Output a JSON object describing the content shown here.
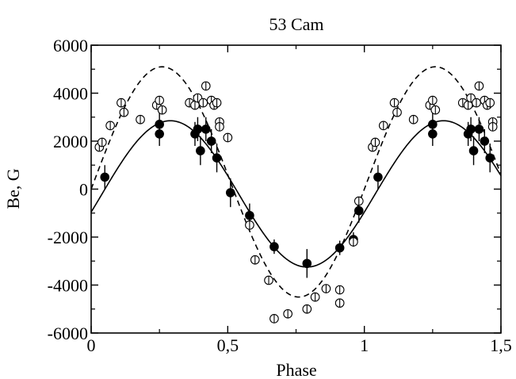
{
  "chart_data": {
    "type": "scatter",
    "title": "53 Cam",
    "xlabel": "Phase",
    "ylabel": "Be, G",
    "xlim": [
      0,
      1.5
    ],
    "ylim": [
      -6000,
      6000
    ],
    "x_ticks": [
      {
        "value": 0,
        "label": "0"
      },
      {
        "value": 0.5,
        "label": "0,5"
      },
      {
        "value": 1,
        "label": "1"
      },
      {
        "value": 1.5,
        "label": "1,5"
      }
    ],
    "y_ticks": [
      {
        "value": -6000,
        "label": "-6000"
      },
      {
        "value": -4000,
        "label": "-4000"
      },
      {
        "value": -2000,
        "label": "-2000"
      },
      {
        "value": 0,
        "label": "0"
      },
      {
        "value": 2000,
        "label": "2000"
      },
      {
        "value": 4000,
        "label": "4000"
      },
      {
        "value": 6000,
        "label": "6000"
      }
    ],
    "grid": false,
    "legend": "none",
    "series": [
      {
        "marker": "filled-circle",
        "color": "#000000",
        "points": [
          {
            "x": 0.05,
            "y": 500,
            "err": 500
          },
          {
            "x": 0.25,
            "y": 2300,
            "err": 500
          },
          {
            "x": 0.25,
            "y": 2700,
            "err": 500
          },
          {
            "x": 0.38,
            "y": 2300,
            "err": 500
          },
          {
            "x": 0.39,
            "y": 2500,
            "err": 500
          },
          {
            "x": 0.4,
            "y": 1600,
            "err": 600
          },
          {
            "x": 0.42,
            "y": 2500,
            "err": 500
          },
          {
            "x": 0.44,
            "y": 2000,
            "err": 500
          },
          {
            "x": 0.46,
            "y": 1300,
            "err": 600
          },
          {
            "x": 0.51,
            "y": -150,
            "err": 600
          },
          {
            "x": 0.58,
            "y": -1100,
            "err": 500
          },
          {
            "x": 0.67,
            "y": -2400,
            "err": 300
          },
          {
            "x": 0.79,
            "y": -3100,
            "err": 600
          },
          {
            "x": 0.91,
            "y": -2450,
            "err": 300
          },
          {
            "x": 0.96,
            "y": -2100,
            "err": 300
          },
          {
            "x": 0.98,
            "y": -900,
            "err": 500
          },
          {
            "x": 1.05,
            "y": 500,
            "err": 500
          },
          {
            "x": 1.25,
            "y": 2300,
            "err": 500
          },
          {
            "x": 1.25,
            "y": 2700,
            "err": 500
          },
          {
            "x": 1.38,
            "y": 2300,
            "err": 500
          },
          {
            "x": 1.39,
            "y": 2500,
            "err": 500
          },
          {
            "x": 1.4,
            "y": 1600,
            "err": 600
          },
          {
            "x": 1.42,
            "y": 2500,
            "err": 500
          },
          {
            "x": 1.44,
            "y": 2000,
            "err": 500
          },
          {
            "x": 1.46,
            "y": 1300,
            "err": 600
          }
        ]
      },
      {
        "marker": "open-circle",
        "color": "#000000",
        "points": [
          {
            "x": 0.03,
            "y": 1750
          },
          {
            "x": 0.04,
            "y": 1950
          },
          {
            "x": 0.07,
            "y": 2650
          },
          {
            "x": 0.11,
            "y": 3600
          },
          {
            "x": 0.12,
            "y": 3200
          },
          {
            "x": 0.18,
            "y": 2900
          },
          {
            "x": 0.24,
            "y": 3500
          },
          {
            "x": 0.25,
            "y": 3700
          },
          {
            "x": 0.26,
            "y": 3300
          },
          {
            "x": 0.36,
            "y": 3600
          },
          {
            "x": 0.38,
            "y": 3500
          },
          {
            "x": 0.39,
            "y": 3800
          },
          {
            "x": 0.41,
            "y": 3600
          },
          {
            "x": 0.42,
            "y": 4300
          },
          {
            "x": 0.44,
            "y": 3700
          },
          {
            "x": 0.45,
            "y": 3500
          },
          {
            "x": 0.46,
            "y": 3600
          },
          {
            "x": 0.47,
            "y": 2800
          },
          {
            "x": 0.47,
            "y": 2600
          },
          {
            "x": 0.5,
            "y": 2150
          },
          {
            "x": 0.58,
            "y": -1500
          },
          {
            "x": 0.6,
            "y": -2950
          },
          {
            "x": 0.65,
            "y": -3800
          },
          {
            "x": 0.67,
            "y": -5400
          },
          {
            "x": 0.72,
            "y": -5200
          },
          {
            "x": 0.79,
            "y": -5000
          },
          {
            "x": 0.82,
            "y": -4500
          },
          {
            "x": 0.86,
            "y": -4150
          },
          {
            "x": 0.91,
            "y": -4750
          },
          {
            "x": 0.91,
            "y": -4200
          },
          {
            "x": 0.96,
            "y": -2200
          },
          {
            "x": 0.98,
            "y": -500
          },
          {
            "x": 1.03,
            "y": 1750
          },
          {
            "x": 1.04,
            "y": 1950
          },
          {
            "x": 1.07,
            "y": 2650
          },
          {
            "x": 1.11,
            "y": 3600
          },
          {
            "x": 1.12,
            "y": 3200
          },
          {
            "x": 1.18,
            "y": 2900
          },
          {
            "x": 1.24,
            "y": 3500
          },
          {
            "x": 1.25,
            "y": 3700
          },
          {
            "x": 1.26,
            "y": 3300
          },
          {
            "x": 1.36,
            "y": 3600
          },
          {
            "x": 1.38,
            "y": 3500
          },
          {
            "x": 1.39,
            "y": 3800
          },
          {
            "x": 1.41,
            "y": 3600
          },
          {
            "x": 1.42,
            "y": 4300
          },
          {
            "x": 1.44,
            "y": 3700
          },
          {
            "x": 1.45,
            "y": 3500
          },
          {
            "x": 1.46,
            "y": 3600
          },
          {
            "x": 1.47,
            "y": 2800
          },
          {
            "x": 1.47,
            "y": 2600
          }
        ]
      }
    ],
    "curves": [
      {
        "style": "solid",
        "mean": -200,
        "amplitude": 3050,
        "phase_of_max": 0.29
      },
      {
        "style": "dashed",
        "mean": 300,
        "amplitude": 4800,
        "phase_of_max": 0.26
      }
    ]
  }
}
